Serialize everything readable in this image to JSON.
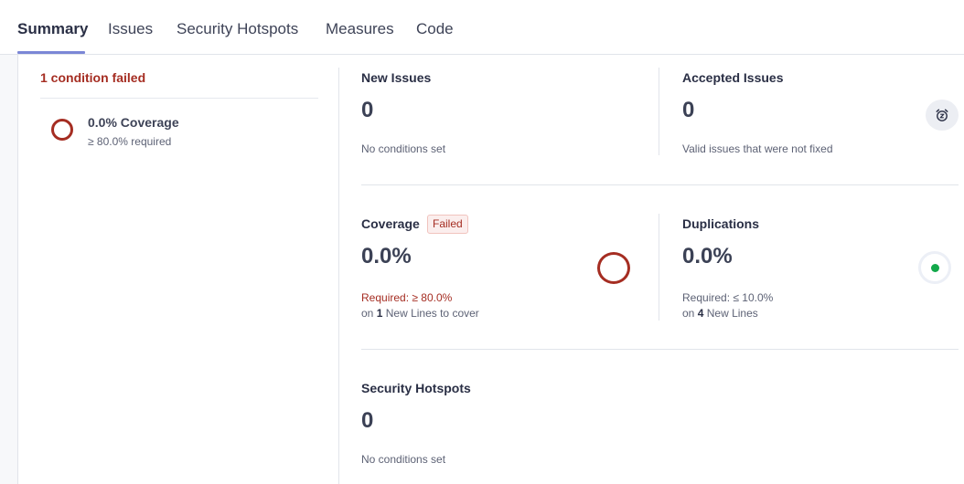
{
  "tabs": [
    {
      "label": "Summary",
      "active": true
    },
    {
      "label": "Issues",
      "active": false
    },
    {
      "label": "Security Hotspots",
      "active": false
    },
    {
      "label": "Measures",
      "active": false
    },
    {
      "label": "Code",
      "active": false
    }
  ],
  "quality_gate": {
    "status": "1 condition failed",
    "condition": {
      "name": "0.0% Coverage",
      "requirement": "≥ 80.0% required"
    }
  },
  "cards": {
    "new_issues": {
      "title": "New Issues",
      "value": "0",
      "sub": "No conditions set"
    },
    "accepted_issues": {
      "title": "Accepted Issues",
      "value": "0",
      "sub": "Valid issues that were not fixed",
      "icon": "alarm-clock-icon"
    },
    "coverage": {
      "title": "Coverage",
      "badge": "Failed",
      "value": "0.0%",
      "required": "Required: ≥ 80.0%",
      "on_prefix": "on",
      "on_count": "1",
      "on_suffix": "New Lines to cover"
    },
    "duplications": {
      "title": "Duplications",
      "value": "0.0%",
      "required": "Required: ≤ 10.0%",
      "on_prefix": "on",
      "on_count": "4",
      "on_suffix": "New Lines"
    },
    "security_hotspots": {
      "title": "Security Hotspots",
      "value": "0",
      "sub": "No conditions set"
    }
  },
  "colors": {
    "failed": "#a52d22",
    "passed": "#12a84a",
    "accent": "#7b86d6"
  }
}
